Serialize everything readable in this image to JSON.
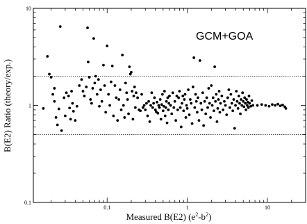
{
  "chart_data": {
    "type": "scatter",
    "xlabel": {
      "base": "Measured B(E2) (e",
      "sup1": "2",
      "mid": "-b",
      "sup2": "2",
      "end": ")"
    },
    "ylabel": "B(E2) Ratio (theory/exp.)",
    "annotation": "GCM+GOA",
    "xscale": "log",
    "yscale": "log",
    "xlim": [
      0.012,
      30
    ],
    "ylim": [
      0.1,
      10
    ],
    "x_ticks": [
      {
        "value": 0.1,
        "label": "0.1"
      },
      {
        "value": 1,
        "label": "1"
      },
      {
        "value": 10,
        "label": "10"
      }
    ],
    "y_ticks": [
      {
        "value": 0.1,
        "label": "0.1"
      },
      {
        "value": 1,
        "label": "1"
      },
      {
        "value": 10,
        "label": "10"
      }
    ],
    "reference_lines": [
      2,
      0.5
    ],
    "grid": false,
    "legend": "none",
    "points": [
      [
        0.016,
        0.93
      ],
      [
        0.018,
        3.2
      ],
      [
        0.019,
        2.1
      ],
      [
        0.02,
        1.95
      ],
      [
        0.021,
        1.3
      ],
      [
        0.022,
        1.5
      ],
      [
        0.022,
        1.1
      ],
      [
        0.023,
        0.75
      ],
      [
        0.024,
        0.63
      ],
      [
        0.025,
        0.92
      ],
      [
        0.026,
        6.5
      ],
      [
        0.027,
        0.55
      ],
      [
        0.029,
        1.2
      ],
      [
        0.03,
        0.78
      ],
      [
        0.031,
        1.35
      ],
      [
        0.033,
        1.25
      ],
      [
        0.034,
        0.94
      ],
      [
        0.035,
        0.72
      ],
      [
        0.036,
        1.4
      ],
      [
        0.037,
        1.05
      ],
      [
        0.038,
        0.87
      ],
      [
        0.04,
        0.7
      ],
      [
        0.042,
        0.98
      ],
      [
        0.045,
        1.6
      ],
      [
        0.048,
        1.85
      ],
      [
        0.05,
        1.4
      ],
      [
        0.052,
        1.25
      ],
      [
        0.055,
        1.55
      ],
      [
        0.057,
        6.3
      ],
      [
        0.058,
        2.8
      ],
      [
        0.06,
        1.95
      ],
      [
        0.062,
        1.15
      ],
      [
        0.064,
        1.05
      ],
      [
        0.066,
        1.5
      ],
      [
        0.068,
        4.9
      ],
      [
        0.07,
        1.7
      ],
      [
        0.072,
        2.0
      ],
      [
        0.075,
        1.3
      ],
      [
        0.078,
        1.85
      ],
      [
        0.08,
        0.98
      ],
      [
        0.083,
        1.45
      ],
      [
        0.086,
        1.1
      ],
      [
        0.09,
        2.6
      ],
      [
        0.093,
        1.6
      ],
      [
        0.096,
        0.85
      ],
      [
        0.1,
        4.1
      ],
      [
        0.104,
        1.3
      ],
      [
        0.108,
        1.0
      ],
      [
        0.112,
        1.75
      ],
      [
        0.116,
        2.55
      ],
      [
        0.12,
        0.78
      ],
      [
        0.125,
        1.6
      ],
      [
        0.13,
        1.2
      ],
      [
        0.135,
        0.7
      ],
      [
        0.14,
        1.15
      ],
      [
        0.145,
        1.45
      ],
      [
        0.15,
        0.9
      ],
      [
        0.155,
        3.3
      ],
      [
        0.16,
        1.0
      ],
      [
        0.165,
        0.75
      ],
      [
        0.17,
        1.7
      ],
      [
        0.175,
        1.35
      ],
      [
        0.18,
        1.15
      ],
      [
        0.185,
        0.82
      ],
      [
        0.19,
        2.5
      ],
      [
        0.195,
        2.1
      ],
      [
        0.2,
        2.2
      ],
      [
        0.205,
        1.4
      ],
      [
        0.21,
        0.72
      ],
      [
        0.215,
        1.25
      ],
      [
        0.22,
        1.55
      ],
      [
        0.225,
        0.95
      ],
      [
        0.23,
        1.35
      ],
      [
        0.24,
        1.2
      ],
      [
        0.25,
        0.9
      ],
      [
        0.26,
        0.88
      ],
      [
        0.27,
        1.3
      ],
      [
        0.28,
        0.95
      ],
      [
        0.29,
        1.0
      ],
      [
        0.3,
        0.9
      ],
      [
        0.31,
        1.05
      ],
      [
        0.32,
        0.78
      ],
      [
        0.33,
        1.1
      ],
      [
        0.34,
        0.68
      ],
      [
        0.35,
        1.0
      ],
      [
        0.36,
        1.35
      ],
      [
        0.37,
        0.95
      ],
      [
        0.38,
        1.05
      ],
      [
        0.39,
        1.2
      ],
      [
        0.4,
        0.9
      ],
      [
        0.41,
        0.86
      ],
      [
        0.42,
        1.08
      ],
      [
        0.43,
        0.83
      ],
      [
        0.44,
        1.0
      ],
      [
        0.45,
        0.95
      ],
      [
        0.46,
        1.15
      ],
      [
        0.47,
        0.72
      ],
      [
        0.48,
        1.02
      ],
      [
        0.49,
        1.3
      ],
      [
        0.5,
        0.88
      ],
      [
        0.51,
        0.98
      ],
      [
        0.52,
        1.4
      ],
      [
        0.53,
        0.78
      ],
      [
        0.54,
        0.95
      ],
      [
        0.55,
        1.1
      ],
      [
        0.56,
        0.66
      ],
      [
        0.57,
        1.2
      ],
      [
        0.58,
        0.9
      ],
      [
        0.59,
        1.05
      ],
      [
        0.6,
        1.25
      ],
      [
        0.62,
        1.0
      ],
      [
        0.64,
        0.82
      ],
      [
        0.66,
        1.35
      ],
      [
        0.68,
        0.95
      ],
      [
        0.7,
        1.1
      ],
      [
        0.72,
        0.7
      ],
      [
        0.74,
        1.25
      ],
      [
        0.76,
        0.9
      ],
      [
        0.78,
        1.2
      ],
      [
        0.8,
        1.4
      ],
      [
        0.82,
        0.95
      ],
      [
        0.84,
        0.6
      ],
      [
        0.86,
        1.05
      ],
      [
        0.88,
        1.25
      ],
      [
        0.9,
        0.88
      ],
      [
        0.92,
        1.15
      ],
      [
        0.94,
        1.3
      ],
      [
        0.96,
        0.75
      ],
      [
        0.98,
        1.0
      ],
      [
        1.0,
        0.93
      ],
      [
        1.03,
        1.45
      ],
      [
        1.06,
        0.8
      ],
      [
        1.09,
        1.15
      ],
      [
        1.12,
        1.05
      ],
      [
        1.15,
        0.65
      ],
      [
        1.18,
        1.55
      ],
      [
        1.21,
        3.1
      ],
      [
        1.24,
        0.95
      ],
      [
        1.27,
        1.3
      ],
      [
        1.3,
        1.1
      ],
      [
        1.33,
        0.85
      ],
      [
        1.36,
        1.2
      ],
      [
        1.4,
        0.7
      ],
      [
        1.44,
        2.9
      ],
      [
        1.48,
        1.05
      ],
      [
        1.52,
        0.9
      ],
      [
        1.56,
        1.35
      ],
      [
        1.6,
        0.62
      ],
      [
        1.65,
        1.1
      ],
      [
        1.7,
        0.82
      ],
      [
        1.75,
        1.2
      ],
      [
        1.8,
        0.95
      ],
      [
        1.85,
        1.5
      ],
      [
        1.9,
        1.05
      ],
      [
        1.95,
        0.75
      ],
      [
        2.0,
        1.6
      ],
      [
        2.05,
        1.0
      ],
      [
        2.1,
        1.2
      ],
      [
        2.15,
        0.88
      ],
      [
        2.2,
        2.5
      ],
      [
        2.25,
        1.1
      ],
      [
        2.3,
        1.3
      ],
      [
        2.35,
        0.68
      ],
      [
        2.4,
        0.93
      ],
      [
        2.45,
        1.15
      ],
      [
        2.5,
        1.4
      ],
      [
        2.55,
        0.85
      ],
      [
        2.6,
        1.05
      ],
      [
        2.7,
        1.25
      ],
      [
        2.8,
        0.9
      ],
      [
        2.9,
        1.1
      ],
      [
        3.0,
        1.0
      ],
      [
        3.1,
        0.8
      ],
      [
        3.2,
        1.2
      ],
      [
        3.3,
        1.45
      ],
      [
        3.4,
        0.95
      ],
      [
        3.5,
        1.3
      ],
      [
        3.6,
        1.05
      ],
      [
        3.7,
        0.88
      ],
      [
        3.8,
        1.15
      ],
      [
        3.9,
        0.58
      ],
      [
        4.0,
        1.0
      ],
      [
        4.1,
        1.4
      ],
      [
        4.2,
        1.1
      ],
      [
        4.3,
        0.93
      ],
      [
        4.4,
        1.25
      ],
      [
        4.5,
        1.05
      ],
      [
        4.6,
        0.82
      ],
      [
        4.7,
        1.15
      ],
      [
        4.8,
        1.0
      ],
      [
        4.9,
        1.35
      ],
      [
        5.0,
        1.1
      ],
      [
        5.1,
        0.97
      ],
      [
        5.2,
        1.2
      ],
      [
        5.3,
        1.05
      ],
      [
        5.4,
        0.9
      ],
      [
        5.5,
        1.15
      ],
      [
        5.6,
        1.0
      ],
      [
        5.7,
        1.08
      ],
      [
        5.8,
        0.95
      ],
      [
        5.9,
        1.25
      ],
      [
        6.0,
        1.05
      ],
      [
        6.2,
        0.98
      ],
      [
        6.4,
        1.12
      ],
      [
        6.6,
        1.0
      ],
      [
        7.5,
        1.0
      ],
      [
        8.5,
        1.02
      ],
      [
        9.5,
        1.0
      ],
      [
        10.5,
        0.98
      ],
      [
        11.5,
        1.02
      ],
      [
        12.5,
        1.0
      ],
      [
        13.5,
        1.03
      ],
      [
        14.5,
        0.99
      ],
      [
        15.5,
        1.01
      ],
      [
        16.5,
        0.97
      ],
      [
        17.0,
        0.93
      ]
    ]
  }
}
